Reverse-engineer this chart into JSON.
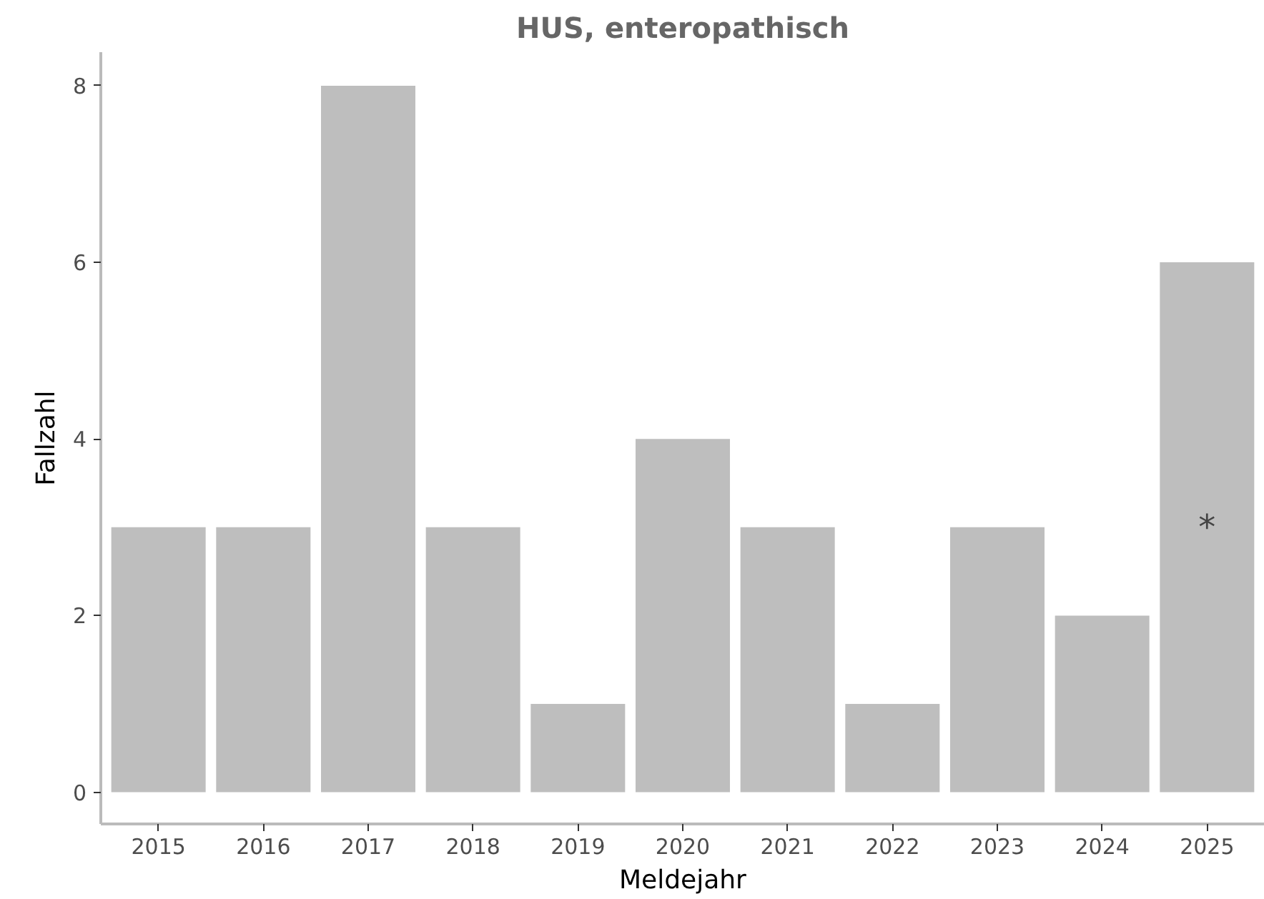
{
  "chart_data": {
    "type": "bar",
    "title": "HUS, enteropathisch",
    "xlabel": "Meldejahr",
    "ylabel": "Fallzahl",
    "categories": [
      "2015",
      "2016",
      "2017",
      "2018",
      "2019",
      "2020",
      "2021",
      "2022",
      "2023",
      "2024",
      "2025"
    ],
    "values": [
      3,
      3,
      8,
      3,
      1,
      4,
      3,
      1,
      3,
      2,
      6
    ],
    "color": "#bebebe",
    "ylim": [
      -0.36,
      8.38
    ],
    "yticks": [
      0,
      2,
      4,
      6,
      8
    ],
    "grid": false,
    "annotations": [
      "*"
    ]
  }
}
